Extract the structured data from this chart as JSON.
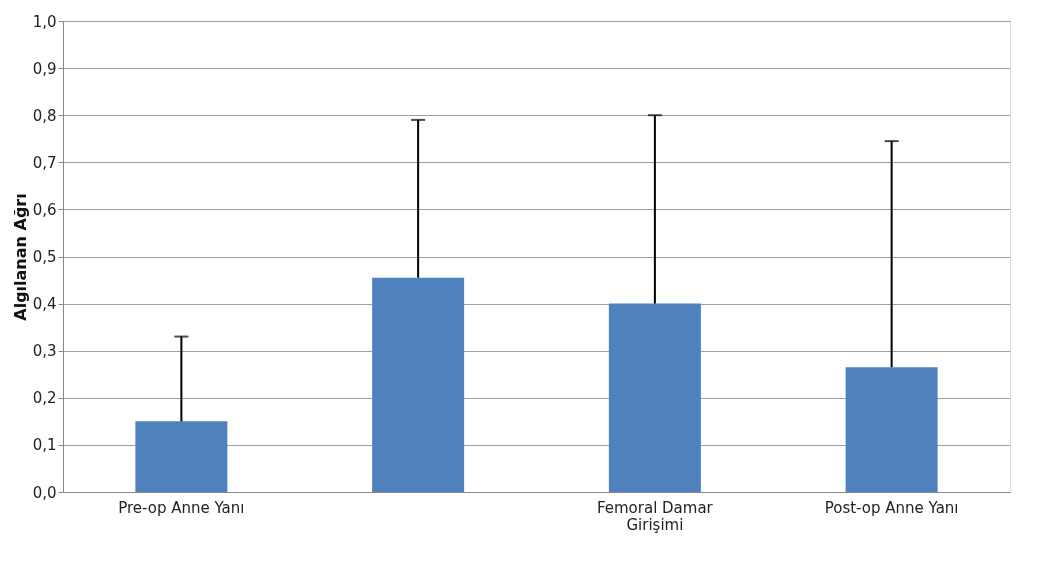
{
  "chart_data": {
    "type": "bar",
    "ylabel": "Algılanan Ağrı",
    "categories": [
      "Pre-op Anne Yanı",
      null,
      "Femoral Damar Girişimi",
      "Post-op Anne Yanı"
    ],
    "values": [
      0.15,
      0.455,
      0.4,
      0.265
    ],
    "errors": [
      [
        0.15,
        0.33
      ],
      [
        0.455,
        0.79
      ],
      [
        0.4,
        0.8
      ],
      [
        0.265,
        0.745
      ]
    ],
    "color": "#4f81bd",
    "ylim": [
      0,
      1
    ],
    "yticks": [
      {
        "value": 0,
        "label": "0,0"
      },
      {
        "value": 0.1,
        "label": "0,1"
      },
      {
        "value": 0.2,
        "label": "0,2"
      },
      {
        "value": 0.3,
        "label": "0,3"
      },
      {
        "value": 0.4,
        "label": "0,4"
      },
      {
        "value": 0.5,
        "label": "0,5"
      },
      {
        "value": 0.6,
        "label": "0,6"
      },
      {
        "value": 0.7,
        "label": "0,7"
      },
      {
        "value": 0.8,
        "label": "0,8"
      },
      {
        "value": 0.9,
        "label": "0,9"
      },
      {
        "value": 1,
        "label": "1,0"
      }
    ],
    "grid": "y"
  }
}
